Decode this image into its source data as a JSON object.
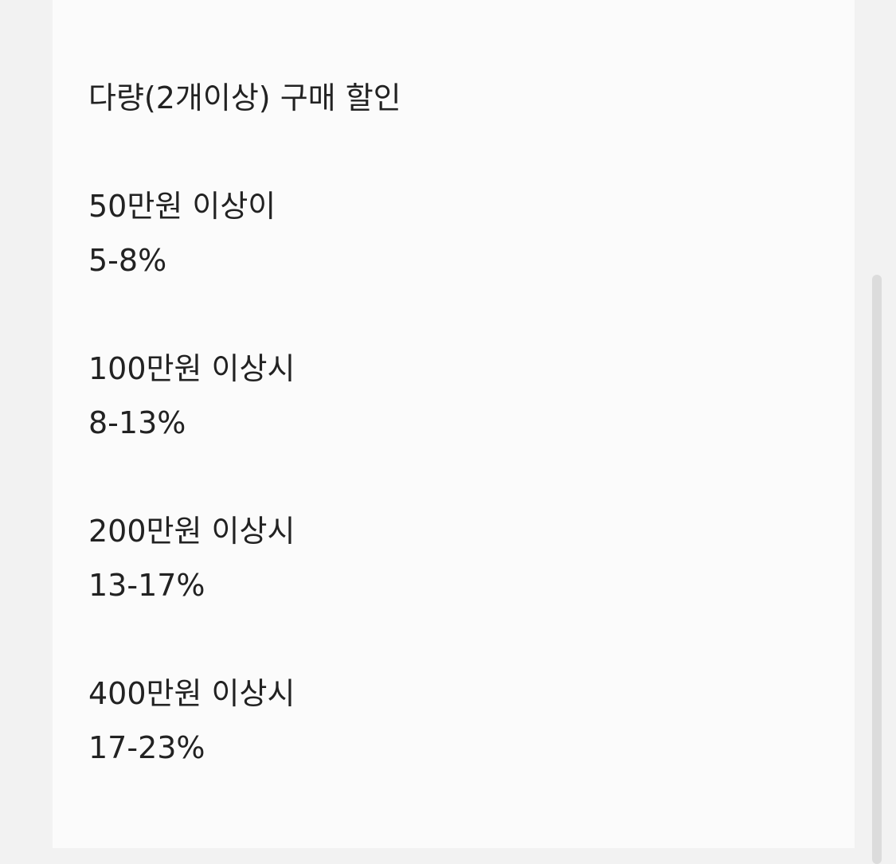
{
  "title": "다량(2개이상) 구매 할인",
  "tiers": [
    {
      "threshold": "50만원 이상이",
      "discount": "5-8%"
    },
    {
      "threshold": "100만원 이상시",
      "discount": "8-13%"
    },
    {
      "threshold": "200만원 이상시",
      "discount": "13-17%"
    },
    {
      "threshold": "400만원 이상시",
      "discount": "17-23%"
    }
  ]
}
